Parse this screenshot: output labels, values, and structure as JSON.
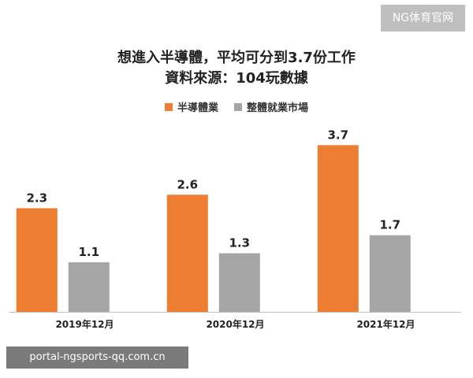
{
  "watermark_top": "NG体育官网",
  "watermark_bottom": "portal-ngsports-qq.com.cn",
  "chart_data": {
    "type": "bar",
    "title": "想進入半導體，平均可分到3.7份工作",
    "subtitle": "資料來源：104玩數據",
    "categories": [
      "2019年12月",
      "2020年12月",
      "2021年12月"
    ],
    "series": [
      {
        "name": "半導體業",
        "color": "#ed7d31",
        "values": [
          2.3,
          2.6,
          3.7
        ]
      },
      {
        "name": "整體就業市場",
        "color": "#a5a5a5",
        "values": [
          1.1,
          1.3,
          1.7
        ]
      }
    ],
    "ylim": [
      0,
      4.3
    ],
    "grid": false,
    "legend_position": "top"
  }
}
